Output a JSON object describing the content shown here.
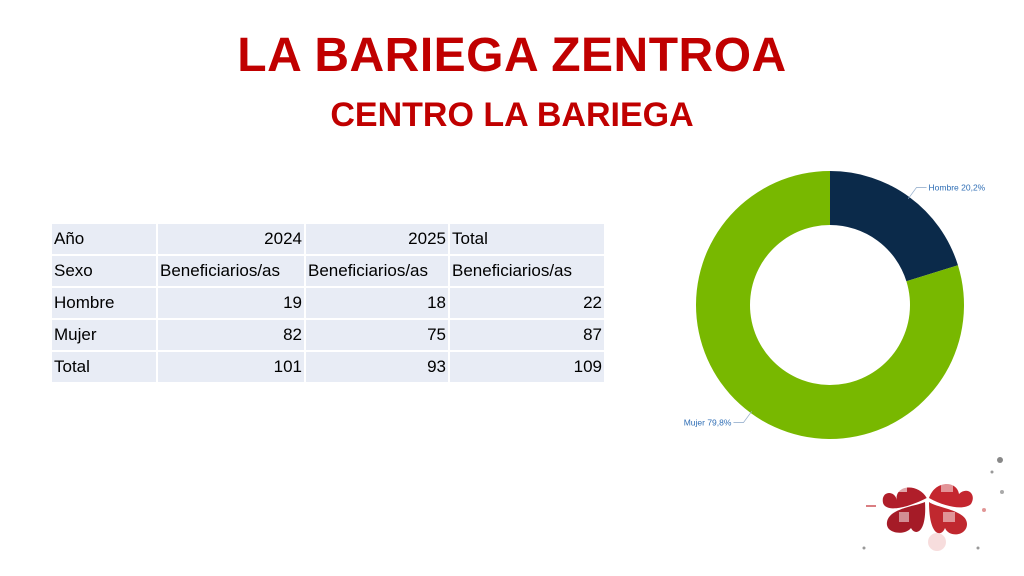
{
  "slide": {
    "title": "LA BARIEGA ZENTROA",
    "subtitle": "CENTRO LA BARIEGA"
  },
  "table": {
    "rows": [
      [
        "Año",
        "2024",
        "2025",
        "Total"
      ],
      [
        "Sexo",
        "Beneficiarios/as",
        "Beneficiarios/as",
        "Beneficiarios/as"
      ],
      [
        "Hombre",
        "19",
        "18",
        "22"
      ],
      [
        "Mujer",
        "82",
        "75",
        "87"
      ],
      [
        "Total",
        "101",
        "93",
        "109"
      ]
    ]
  },
  "chart_data": {
    "type": "pie",
    "donut": true,
    "title": "",
    "categories": [
      "Hombre",
      "Mujer"
    ],
    "values": [
      20.2,
      79.8
    ],
    "labels": [
      "Hombre 20,2%",
      "Mujer 79,8%"
    ],
    "colors": [
      "#0b2a4a",
      "#78b800"
    ],
    "label_color": "#2f6eb5"
  },
  "logo": {
    "icon": "heart-clover-logo-icon"
  }
}
